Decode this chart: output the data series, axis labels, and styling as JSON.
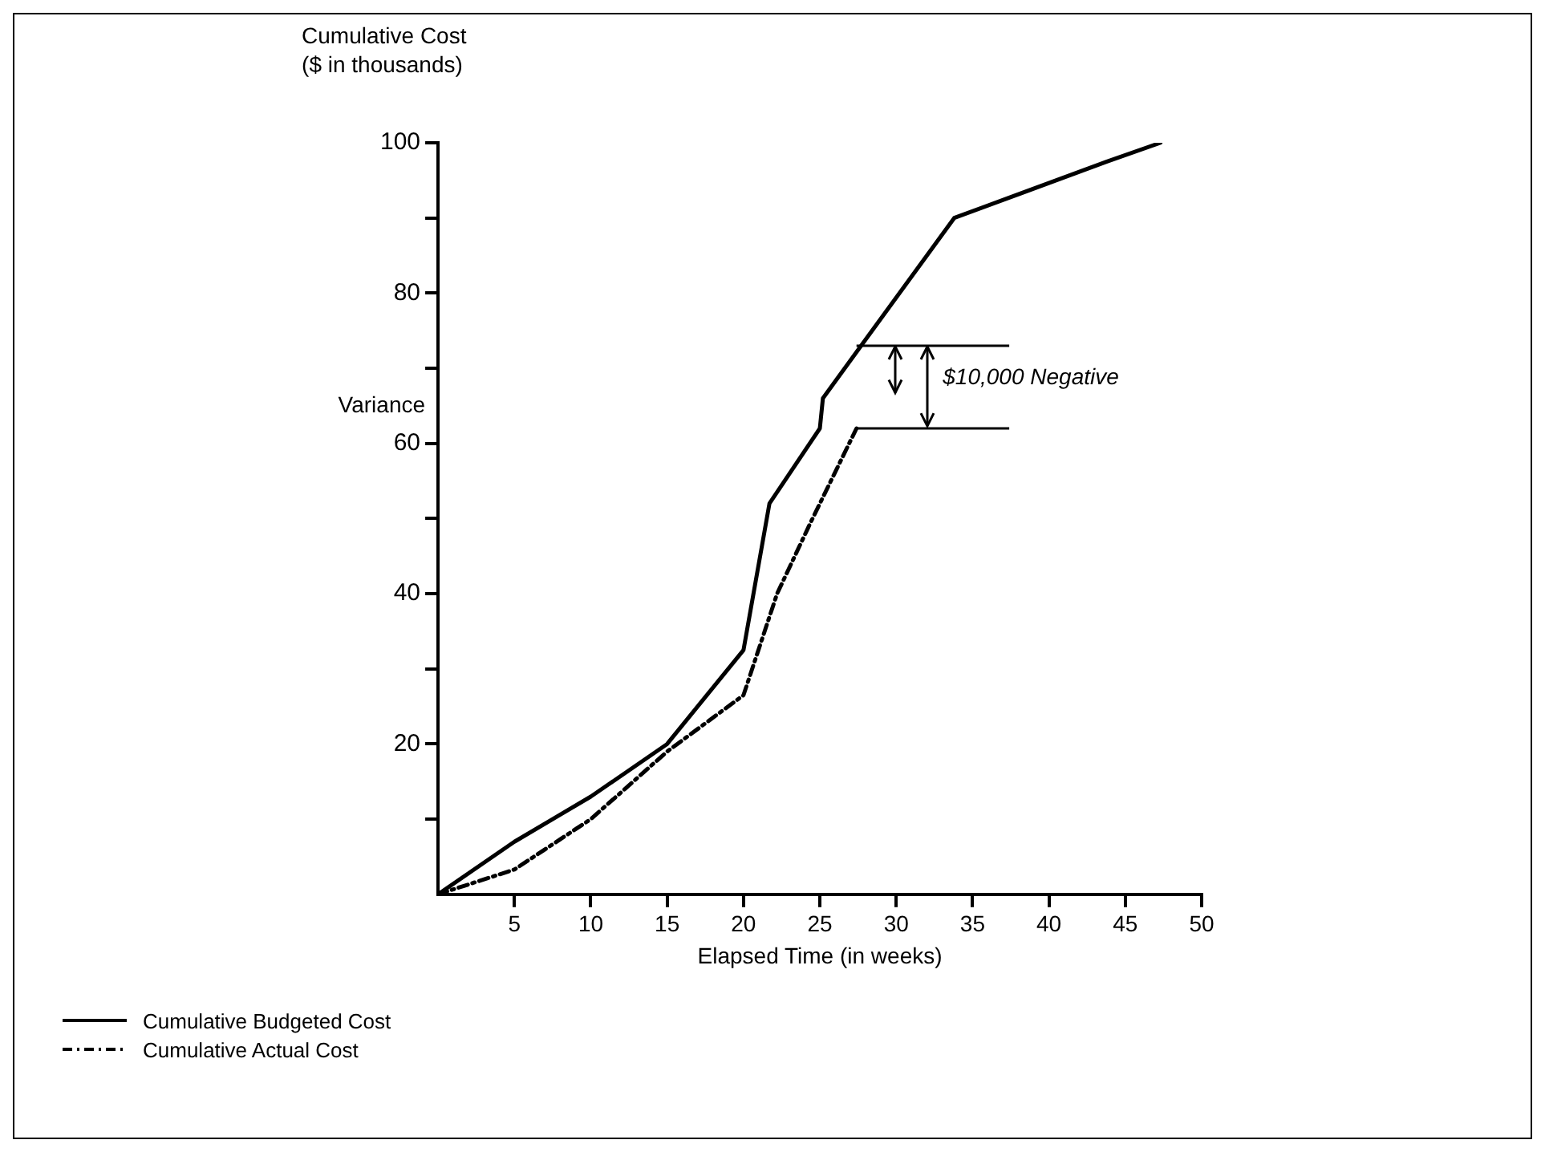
{
  "chart_data": {
    "type": "line",
    "ylabel": "Cumulative Cost ($ in thousands)",
    "xlabel": "Elapsed Time (in weeks)",
    "xlim": [
      0,
      50
    ],
    "xticks": [
      5,
      10,
      15,
      20,
      25,
      30,
      35,
      40,
      45,
      50
    ],
    "ylim": [
      0,
      100
    ],
    "yticks": [
      {
        "value": 10,
        "label": null
      },
      20,
      {
        "value": 30,
        "label": null
      },
      40,
      {
        "value": 50,
        "label": null
      },
      60,
      {
        "value": 70,
        "label": null
      },
      80,
      {
        "value": 90,
        "label": null
      },
      100
    ],
    "grid": false,
    "legend": "bottom left",
    "marker": "none",
    "series": [
      {
        "name": "Cumulative Budgeted Cost",
        "color": "#000000",
        "line_style": "solid",
        "x": [
          0,
          5,
          10,
          15,
          20,
          21.7,
          25,
          25.2,
          27.7,
          33.8,
          43.8,
          47.3
        ],
        "values": [
          0,
          7,
          13,
          20,
          32.5,
          52,
          62,
          66,
          73,
          90,
          97.5,
          100
        ]
      },
      {
        "name": "Cumulative Actual Cost",
        "color": "#000000",
        "line_style": "dashed",
        "x": [
          0,
          5,
          10,
          15,
          20,
          22.2,
          24.4,
          27.4
        ],
        "values": [
          0,
          3.3,
          10,
          19,
          26.5,
          40,
          49.5,
          62
        ]
      }
    ],
    "ref_lines": [
      {
        "axis": "y",
        "value": 73
      },
      {
        "axis": "y",
        "value": 62
      }
    ],
    "annotations": [
      {
        "text": "$10,000 Negative",
        "x": 32,
        "y": 73
      },
      "Variance"
    ]
  }
}
